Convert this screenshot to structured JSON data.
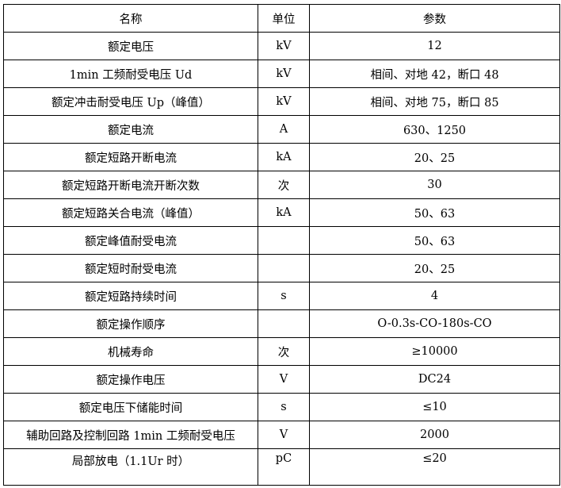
{
  "table": {
    "headers": [
      "名称",
      "单位",
      "参数"
    ],
    "rows": [
      [
        "额定电压",
        "kV",
        "12"
      ],
      [
        "1min 工频耐受电压 Ud",
        "kV",
        "相间、对地 42，断口 48"
      ],
      [
        "额定冲击耐受电压 Up（峰值）",
        "kV",
        "相间、对地 75，断口 85"
      ],
      [
        "额定电流",
        "A",
        "630、1250"
      ],
      [
        "额定短路开断电流",
        "kA",
        "20、25"
      ],
      [
        "额定短路开断电流开断次数",
        "次",
        "30"
      ],
      [
        "额定短路关合电流（峰值）",
        "kA",
        "50、63"
      ],
      [
        "额定峰值耐受电流",
        "",
        "50、63"
      ],
      [
        "额定短时耐受电流",
        "",
        "20、25"
      ],
      [
        "额定短路持续时间",
        "s",
        "4"
      ],
      [
        "额定操作顺序",
        "",
        "O-0.3s-CO-180s-CO"
      ],
      [
        "机械寿命",
        "次",
        "≥10000"
      ],
      [
        "额定操作电压",
        "V",
        "DC24"
      ],
      [
        "额定电压下储能时间",
        "s",
        "≤10"
      ],
      [
        "辅助回路及控制回路 1min 工频耐受电压",
        "V",
        "2000"
      ],
      [
        "局部放电（1.1Ur 时）",
        "pC",
        "≤20"
      ]
    ]
  }
}
